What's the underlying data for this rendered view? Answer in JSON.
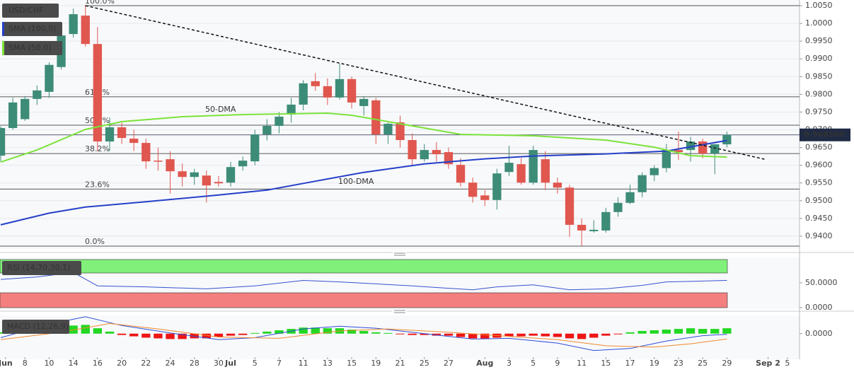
{
  "chart_data": {
    "type": "candlestick",
    "symbol": "USD/CHF",
    "open": [
      0.9627,
      0.9705,
      0.973,
      0.9787,
      0.9807,
      0.9877,
      0.997,
      1.0022,
      0.9942,
      0.9667,
      0.9707,
      0.9675,
      0.9663,
      0.9613,
      0.9617,
      0.9583,
      0.9567,
      0.9571,
      0.9553,
      0.9551,
      0.9597,
      0.9611,
      0.9687,
      0.9711,
      0.9743,
      0.9771,
      0.9837,
      0.9823,
      0.9791,
      0.9843,
      0.9767,
      0.9783,
      0.9687,
      0.9721,
      0.9671,
      0.9617,
      0.9643,
      0.9637,
      0.9601,
      0.9551,
      0.9515,
      0.9502,
      0.9581,
      0.9603,
      0.9551,
      0.9617,
      0.9551,
      0.9537,
      0.9432,
      0.9414,
      0.9416,
      0.9468,
      0.9494,
      0.9524,
      0.9572,
      0.9592,
      0.9643,
      0.9643,
      0.9667,
      0.9633,
      0.9659
    ],
    "high": [
      0.971,
      0.979,
      0.9795,
      0.9825,
      0.989,
      0.9985,
      1.0042,
      1.005,
      0.999,
      0.9735,
      0.972,
      0.97,
      0.9675,
      0.965,
      0.964,
      0.9605,
      0.959,
      0.9585,
      0.957,
      0.961,
      0.9625,
      0.97,
      0.973,
      0.975,
      0.979,
      0.984,
      0.986,
      0.9845,
      0.9887,
      0.985,
      0.9795,
      0.979,
      0.972,
      0.974,
      0.969,
      0.966,
      0.9665,
      0.965,
      0.962,
      0.9565,
      0.953,
      0.959,
      0.9655,
      0.962,
      0.9655,
      0.964,
      0.9565,
      0.9545,
      0.945,
      0.9445,
      0.948,
      0.951,
      0.9545,
      0.958,
      0.96,
      0.966,
      0.9695,
      0.968,
      0.9675,
      0.966,
      0.9695
    ],
    "low": [
      0.961,
      0.97,
      0.9725,
      0.977,
      0.979,
      0.987,
      0.996,
      0.9935,
      0.964,
      0.964,
      0.966,
      0.964,
      0.959,
      0.9585,
      0.952,
      0.954,
      0.9545,
      0.9495,
      0.954,
      0.954,
      0.9585,
      0.96,
      0.967,
      0.969,
      0.972,
      0.9755,
      0.981,
      0.977,
      0.9785,
      0.976,
      0.974,
      0.966,
      0.966,
      0.965,
      0.96,
      0.961,
      0.961,
      0.959,
      0.954,
      0.9495,
      0.9485,
      0.9475,
      0.957,
      0.9545,
      0.9545,
      0.953,
      0.952,
      0.9398,
      0.9372,
      0.941,
      0.941,
      0.9455,
      0.949,
      0.951,
      0.9555,
      0.958,
      0.9615,
      0.961,
      0.962,
      0.9575,
      0.965
    ],
    "close": [
      0.9705,
      0.9777,
      0.9787,
      0.9811,
      0.9883,
      0.9966,
      1.0026,
      0.9942,
      0.9667,
      0.9707,
      0.9677,
      0.9663,
      0.9611,
      0.961,
      0.9583,
      0.9567,
      0.958,
      0.9543,
      0.9549,
      0.9595,
      0.9613,
      0.9687,
      0.9711,
      0.9737,
      0.9771,
      0.9831,
      0.9823,
      0.9791,
      0.9843,
      0.9777,
      0.9787,
      0.9687,
      0.9717,
      0.9671,
      0.9617,
      0.9643,
      0.9631,
      0.9603,
      0.9551,
      0.9511,
      0.9502,
      0.9577,
      0.9607,
      0.9551,
      0.9643,
      0.9551,
      0.9537,
      0.9432,
      0.9416,
      0.9418,
      0.9468,
      0.9494,
      0.9524,
      0.9572,
      0.9592,
      0.9643,
      0.9637,
      0.9667,
      0.9633,
      0.9659,
      0.96856
    ],
    "up_color": "#3d8c78",
    "down_color": "#e0574f",
    "xlim": [
      -0.06,
      66
    ],
    "xticks": [
      {
        "value": 0.4,
        "label": "Jun"
      },
      {
        "value": 2,
        "label": "8"
      },
      {
        "value": 4,
        "label": "10"
      },
      {
        "value": 6,
        "label": "14"
      },
      {
        "value": 8,
        "label": "16"
      },
      {
        "value": 10,
        "label": "20"
      },
      {
        "value": 12,
        "label": "22"
      },
      {
        "value": 14,
        "label": "24"
      },
      {
        "value": 16,
        "label": "28"
      },
      {
        "value": 18,
        "label": "30"
      },
      {
        "value": 19,
        "label": "Jul"
      },
      {
        "value": 21,
        "label": "5"
      },
      {
        "value": 23,
        "label": "7"
      },
      {
        "value": 25,
        "label": "11"
      },
      {
        "value": 27,
        "label": "13"
      },
      {
        "value": 29,
        "label": "15"
      },
      {
        "value": 31,
        "label": "19"
      },
      {
        "value": 33,
        "label": "21"
      },
      {
        "value": 35,
        "label": "25"
      },
      {
        "value": 37,
        "label": "27"
      },
      {
        "value": 40,
        "label": "Aug"
      },
      {
        "value": 42,
        "label": "3"
      },
      {
        "value": 44,
        "label": "5"
      },
      {
        "value": 46,
        "label": "9"
      },
      {
        "value": 48,
        "label": "11"
      },
      {
        "value": 50,
        "label": "15"
      },
      {
        "value": 52,
        "label": "17"
      },
      {
        "value": 54,
        "label": "19"
      },
      {
        "value": 56,
        "label": "23"
      },
      {
        "value": 58,
        "label": "25"
      },
      {
        "value": 60,
        "label": "29"
      },
      {
        "value": 63.4,
        "label": "Sep 2"
      },
      {
        "value": 65,
        "label": "5"
      }
    ],
    "ylim": [
      0.9364,
      1.0066
    ],
    "yticks": [
      {
        "value": 1.005,
        "label": "1.0050"
      },
      {
        "value": 1.0,
        "label": "1.0000"
      },
      {
        "value": 0.995,
        "label": "0.9950"
      },
      {
        "value": 0.99,
        "label": "0.9900"
      },
      {
        "value": 0.985,
        "label": "0.9850"
      },
      {
        "value": 0.98,
        "label": "0.9800"
      },
      {
        "value": 0.975,
        "label": "0.9750"
      },
      {
        "value": 0.97,
        "label": "0.9700"
      },
      {
        "value": 0.965,
        "label": "0.9650"
      },
      {
        "value": 0.96,
        "label": "0.9600"
      },
      {
        "value": 0.955,
        "label": "0.9550"
      },
      {
        "value": 0.95,
        "label": "0.9500"
      },
      {
        "value": 0.945,
        "label": "0.9450"
      },
      {
        "value": 0.94,
        "label": "0.9400"
      }
    ],
    "grid": true,
    "last_price": 0.96856,
    "last_price_label": "0.968560",
    "series": [
      {
        "name": "SMA (100,0)",
        "label": "100-DMA",
        "color": "#2540c8",
        "x": [
          0,
          4,
          7,
          12,
          18,
          22,
          26,
          30,
          35,
          40,
          44,
          50,
          55,
          60
        ],
        "values": [
          0.9432,
          0.9465,
          0.9482,
          0.9497,
          0.9516,
          0.953,
          0.9555,
          0.958,
          0.9604,
          0.9618,
          0.9626,
          0.9632,
          0.964,
          0.967
        ]
      },
      {
        "name": "SMA (50,0)",
        "label": "50-DMA",
        "color": "#7be33a",
        "x": [
          0,
          3,
          7,
          10,
          15,
          20,
          27,
          29,
          34,
          38,
          44,
          50,
          54,
          57,
          60
        ],
        "values": [
          0.9609,
          0.9643,
          0.9701,
          0.9723,
          0.9737,
          0.9743,
          0.9747,
          0.9741,
          0.9711,
          0.9687,
          0.9683,
          0.9671,
          0.9651,
          0.9627,
          0.9623
        ]
      }
    ],
    "trend_line": {
      "x": [
        7,
        63.1
      ],
      "values": [
        1.005,
        0.9617
      ]
    },
    "fib_levels": [
      {
        "label": "100.0%",
        "value": 1.005
      },
      {
        "label": "61.8%",
        "value": 0.9793
      },
      {
        "label": "50.0%",
        "value": 0.9713
      },
      {
        "label": "38.2%",
        "value": 0.9633
      },
      {
        "label": "23.6%",
        "value": 0.9533
      },
      {
        "label": "0.0%",
        "value": 0.9372
      }
    ],
    "rsi": {
      "name": "RSI (14,70,30,1)",
      "color": "#3553d0",
      "ylim": [
        0,
        100
      ],
      "overbought": 70,
      "oversold": 30,
      "yticks": [
        {
          "value": 50,
          "label": "50.0000"
        },
        {
          "value": 0,
          "label": "0.0000"
        }
      ],
      "x": [
        0,
        3,
        6,
        8,
        12,
        17,
        21,
        25,
        28,
        31,
        34,
        39,
        41,
        44,
        47,
        50,
        53,
        55,
        57,
        60
      ],
      "values": [
        57,
        62,
        71,
        44,
        42,
        38,
        44,
        55,
        52,
        48,
        44,
        36,
        42,
        46,
        36,
        38,
        45,
        52,
        53,
        55
      ]
    },
    "macd": {
      "name": "MACD (12,26,9)",
      "ylim": [
        -0.0076,
        0.0054
      ],
      "yticks": [
        {
          "value": 0,
          "label": "0.0000"
        }
      ],
      "macd_color": "#2d4fd6",
      "signal_color": "#f08a2c",
      "pos_color": "#22d822",
      "neg_color": "#ee1515",
      "macd_x": [
        0,
        4,
        7,
        10,
        14,
        18,
        21,
        25,
        28,
        31,
        35,
        39,
        42,
        46,
        49,
        52,
        55,
        58,
        60
      ],
      "macd_values": [
        -0.0012,
        0.0028,
        0.005,
        0.0024,
        0.0002,
        -0.0018,
        -0.0012,
        0.0014,
        0.0022,
        0.0016,
        0,
        -0.0016,
        -0.0014,
        -0.0028,
        -0.005,
        -0.0044,
        -0.0022,
        -0.0006,
        -0.0002
      ],
      "signal_x": [
        0,
        5,
        9,
        13,
        18,
        23,
        28,
        32,
        37,
        42,
        46,
        50,
        54,
        57,
        60
      ],
      "signal_values": [
        -0.0018,
        0.0004,
        0.003,
        0.0014,
        -0.001,
        -0.0014,
        0.0008,
        0.0014,
        0.0004,
        -0.0008,
        -0.0018,
        -0.0036,
        -0.004,
        -0.003,
        -0.0016
      ],
      "histogram": [
        0.0004,
        0.0008,
        0.0012,
        0.0014,
        0.0018,
        0.002,
        0.0024,
        0.0026,
        0.0016,
        0.0006,
        -0.0004,
        -0.0008,
        -0.0012,
        -0.0014,
        -0.0016,
        -0.0016,
        -0.0014,
        -0.0014,
        -0.001,
        -0.0006,
        -0.0004,
        0.0002,
        0.0006,
        0.001,
        0.0014,
        0.0018,
        0.0018,
        0.0016,
        0.0016,
        0.0012,
        0.0008,
        0.0004,
        0.0002,
        -0.0002,
        -0.0004,
        -0.0004,
        -0.0006,
        -0.0006,
        -0.001,
        -0.0014,
        -0.0016,
        -0.0012,
        -0.0008,
        -0.0008,
        -0.0006,
        -0.0008,
        -0.001,
        -0.0014,
        -0.0016,
        -0.0012,
        -0.0006,
        -0.0002,
        0.0004,
        0.0008,
        0.001,
        0.0012,
        0.0014,
        0.0016,
        0.0014,
        0.0014,
        0.0016
      ]
    }
  }
}
